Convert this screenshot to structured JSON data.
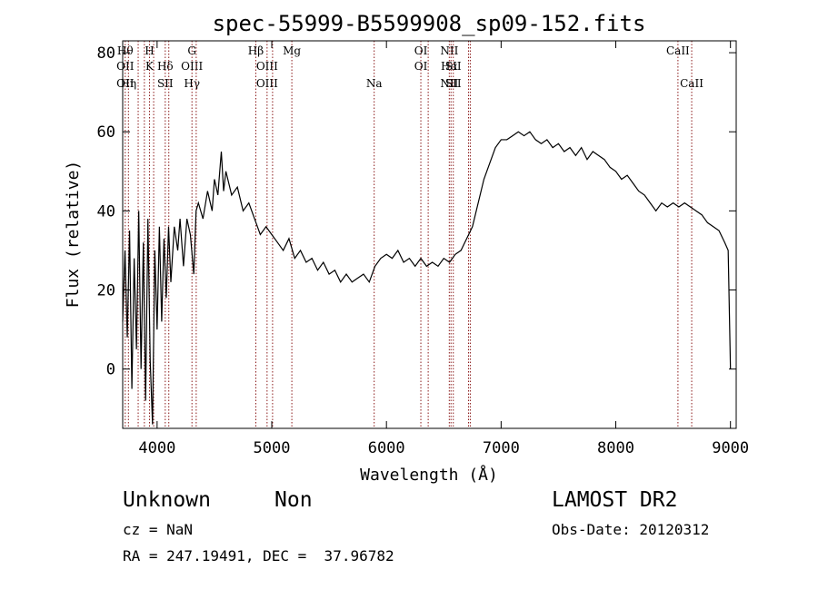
{
  "chart_data": {
    "type": "line",
    "title": "spec-55999-B5599908_sp09-152.fits",
    "xlabel": "Wavelength (Å)",
    "ylabel": "Flux (relative)",
    "xlim": [
      3700,
      9050
    ],
    "ylim": [
      -15,
      83
    ],
    "xticks": [
      4000,
      5000,
      6000,
      7000,
      8000,
      9000
    ],
    "yticks": [
      0,
      20,
      40,
      60,
      80
    ],
    "line_color": "#000000",
    "marker_color": "#8b1a1a",
    "series": [
      {
        "points": [
          [
            3700,
            12
          ],
          [
            3720,
            30
          ],
          [
            3740,
            8
          ],
          [
            3760,
            35
          ],
          [
            3780,
            -5
          ],
          [
            3800,
            28
          ],
          [
            3820,
            5
          ],
          [
            3840,
            40
          ],
          [
            3860,
            0
          ],
          [
            3880,
            32
          ],
          [
            3900,
            -8
          ],
          [
            3920,
            38
          ],
          [
            3940,
            2
          ],
          [
            3960,
            -14
          ],
          [
            3980,
            30
          ],
          [
            4000,
            10
          ],
          [
            4020,
            36
          ],
          [
            4040,
            12
          ],
          [
            4060,
            33
          ],
          [
            4080,
            18
          ],
          [
            4100,
            36
          ],
          [
            4120,
            22
          ],
          [
            4150,
            36
          ],
          [
            4180,
            30
          ],
          [
            4200,
            38
          ],
          [
            4230,
            26
          ],
          [
            4260,
            38
          ],
          [
            4290,
            34
          ],
          [
            4320,
            24
          ],
          [
            4340,
            40
          ],
          [
            4360,
            42
          ],
          [
            4400,
            38
          ],
          [
            4440,
            45
          ],
          [
            4480,
            40
          ],
          [
            4500,
            48
          ],
          [
            4530,
            44
          ],
          [
            4560,
            55
          ],
          [
            4580,
            45
          ],
          [
            4600,
            50
          ],
          [
            4650,
            44
          ],
          [
            4700,
            46
          ],
          [
            4750,
            40
          ],
          [
            4800,
            42
          ],
          [
            4850,
            38
          ],
          [
            4900,
            34
          ],
          [
            4950,
            36
          ],
          [
            5000,
            34
          ],
          [
            5050,
            32
          ],
          [
            5100,
            30
          ],
          [
            5150,
            33
          ],
          [
            5200,
            28
          ],
          [
            5250,
            30
          ],
          [
            5300,
            27
          ],
          [
            5350,
            28
          ],
          [
            5400,
            25
          ],
          [
            5450,
            27
          ],
          [
            5500,
            24
          ],
          [
            5550,
            25
          ],
          [
            5600,
            22
          ],
          [
            5650,
            24
          ],
          [
            5700,
            22
          ],
          [
            5750,
            23
          ],
          [
            5800,
            24
          ],
          [
            5850,
            22
          ],
          [
            5900,
            26
          ],
          [
            5950,
            28
          ],
          [
            6000,
            29
          ],
          [
            6050,
            28
          ],
          [
            6100,
            30
          ],
          [
            6150,
            27
          ],
          [
            6200,
            28
          ],
          [
            6250,
            26
          ],
          [
            6300,
            28
          ],
          [
            6350,
            26
          ],
          [
            6400,
            27
          ],
          [
            6450,
            26
          ],
          [
            6500,
            28
          ],
          [
            6550,
            27
          ],
          [
            6600,
            29
          ],
          [
            6650,
            30
          ],
          [
            6700,
            33
          ],
          [
            6750,
            36
          ],
          [
            6800,
            42
          ],
          [
            6850,
            48
          ],
          [
            6900,
            52
          ],
          [
            6950,
            56
          ],
          [
            7000,
            58
          ],
          [
            7050,
            58
          ],
          [
            7100,
            59
          ],
          [
            7150,
            60
          ],
          [
            7200,
            59
          ],
          [
            7250,
            60
          ],
          [
            7300,
            58
          ],
          [
            7350,
            57
          ],
          [
            7400,
            58
          ],
          [
            7450,
            56
          ],
          [
            7500,
            57
          ],
          [
            7550,
            55
          ],
          [
            7600,
            56
          ],
          [
            7650,
            54
          ],
          [
            7700,
            56
          ],
          [
            7750,
            53
          ],
          [
            7800,
            55
          ],
          [
            7850,
            54
          ],
          [
            7900,
            53
          ],
          [
            7950,
            51
          ],
          [
            8000,
            50
          ],
          [
            8050,
            48
          ],
          [
            8100,
            49
          ],
          [
            8150,
            47
          ],
          [
            8200,
            45
          ],
          [
            8250,
            44
          ],
          [
            8300,
            42
          ],
          [
            8350,
            40
          ],
          [
            8400,
            42
          ],
          [
            8450,
            41
          ],
          [
            8500,
            42
          ],
          [
            8550,
            41
          ],
          [
            8600,
            42
          ],
          [
            8650,
            41
          ],
          [
            8700,
            40
          ],
          [
            8750,
            39
          ],
          [
            8800,
            37
          ],
          [
            8850,
            36
          ],
          [
            8900,
            35
          ],
          [
            8950,
            32
          ],
          [
            8980,
            30
          ],
          [
            9000,
            0
          ]
        ]
      }
    ],
    "lines": [
      {
        "x": 3722,
        "labels": [
          "Hθ",
          "OII",
          "OII"
        ]
      },
      {
        "x": 3750,
        "labels": [
          "",
          "",
          "Hη"
        ]
      },
      {
        "x": 3835,
        "labels": [
          "",
          "",
          ""
        ]
      },
      {
        "x": 3889,
        "labels": [
          "",
          "",
          ""
        ]
      },
      {
        "x": 3934,
        "labels": [
          "H",
          "K",
          ""
        ]
      },
      {
        "x": 3970,
        "labels": [
          "",
          "",
          ""
        ]
      },
      {
        "x": 4071,
        "labels": [
          "",
          "Hδ",
          "SII"
        ]
      },
      {
        "x": 4102,
        "labels": [
          "",
          "",
          ""
        ]
      },
      {
        "x": 4304,
        "labels": [
          "G",
          "OIII",
          "Hγ"
        ]
      },
      {
        "x": 4341,
        "labels": [
          "",
          "",
          ""
        ]
      },
      {
        "x": 4861,
        "labels": [
          "Hβ",
          "",
          ""
        ]
      },
      {
        "x": 4959,
        "labels": [
          "",
          "OIII",
          "OIII"
        ]
      },
      {
        "x": 5007,
        "labels": [
          "",
          "",
          ""
        ]
      },
      {
        "x": 5175,
        "labels": [
          "Mg",
          "",
          ""
        ]
      },
      {
        "x": 5893,
        "labels": [
          "",
          "",
          "Na"
        ]
      },
      {
        "x": 6300,
        "labels": [
          "OI",
          "OI",
          ""
        ]
      },
      {
        "x": 6364,
        "labels": [
          "",
          "",
          ""
        ]
      },
      {
        "x": 6548,
        "labels": [
          "NII",
          "Hα",
          "NII"
        ]
      },
      {
        "x": 6563,
        "labels": [
          "",
          "",
          ""
        ]
      },
      {
        "x": 6583,
        "labels": [
          "",
          "SII",
          "SII"
        ]
      },
      {
        "x": 6716,
        "labels": [
          "",
          "",
          ""
        ]
      },
      {
        "x": 6731,
        "labels": [
          "",
          "",
          ""
        ]
      },
      {
        "x": 8542,
        "labels": [
          "CaII",
          "",
          ""
        ]
      },
      {
        "x": 8662,
        "labels": [
          "",
          "",
          "CaII"
        ]
      }
    ]
  },
  "info": {
    "class": "Unknown",
    "subclass": "Non",
    "cz": "cz = NaN",
    "radec": "RA = 247.19491, DEC =  37.96782",
    "survey": "LAMOST DR2",
    "obsdate": "Obs-Date: 20120312"
  }
}
